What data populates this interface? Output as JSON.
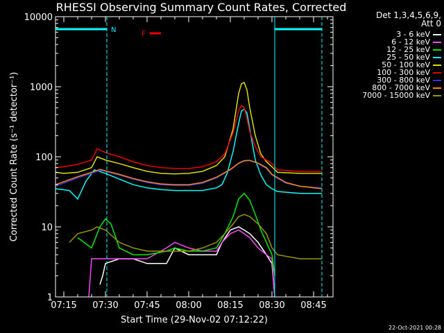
{
  "chart_data": {
    "type": "line",
    "title": "RHESSI Observing Summary Count Rates, Corrected",
    "xlabel": "Start Time (29-Nov-02 07:12:22)",
    "ylabel": "Corrected Count Rate (s⁻¹ detector⁻¹)",
    "yscale": "log",
    "ylim": [
      1,
      10000
    ],
    "xlim": [
      "07:12",
      "08:52"
    ],
    "x_ticks": [
      "07:15",
      "07:30",
      "07:45",
      "08:00",
      "08:15",
      "08:30",
      "08:45"
    ],
    "y_ticks": [
      "1",
      "10",
      "100",
      "1000",
      "10000"
    ],
    "legend_header": [
      "Det 1,3,4,5,6,9,",
      "Att 0"
    ],
    "legend_position": "right",
    "markers": [
      {
        "label": "N",
        "type": "night",
        "start": "07:12",
        "end": "07:30.5"
      },
      {
        "label": "",
        "type": "night",
        "start": "08:31",
        "end": "08:48"
      },
      {
        "label": "F",
        "type": "flare",
        "start": "07:46",
        "end": "07:50"
      }
    ],
    "series": [
      {
        "name": "3 - 6 keV",
        "color": "#ffffff",
        "x": [
          "07:28",
          "07:29",
          "07:30",
          "07:35",
          "07:40",
          "07:45",
          "07:52",
          "07:55",
          "08:00",
          "08:05",
          "08:10",
          "08:12",
          "08:15",
          "08:18",
          "08:20",
          "08:22",
          "08:25",
          "08:28",
          "08:30",
          "08:31"
        ],
        "y": [
          1.5,
          2,
          3,
          3.5,
          3.5,
          3,
          3,
          5,
          4,
          4,
          4,
          6,
          9,
          10,
          9,
          8,
          6,
          4,
          3,
          1
        ]
      },
      {
        "name": "6 - 12 keV",
        "color": "#ff44ff",
        "x": [
          "07:24",
          "07:25",
          "07:30",
          "07:35",
          "07:40",
          "07:45",
          "07:52",
          "07:55",
          "08:00",
          "08:05",
          "08:10",
          "08:12",
          "08:15",
          "08:18",
          "08:20",
          "08:22",
          "08:25",
          "08:28",
          "08:30",
          "08:31"
        ],
        "y": [
          1,
          3.5,
          3.5,
          3.5,
          3.5,
          3.5,
          5,
          6,
          5,
          4.5,
          4.5,
          6,
          8,
          9,
          8,
          7,
          5,
          4,
          3.5,
          1
        ]
      },
      {
        "name": "12 - 25 keV",
        "color": "#00ee00",
        "x": [
          "07:20",
          "07:25",
          "07:28",
          "07:30",
          "07:32",
          "07:35",
          "07:40",
          "07:45",
          "07:52",
          "07:55",
          "08:00",
          "08:05",
          "08:10",
          "08:13",
          "08:16",
          "08:18",
          "08:20",
          "08:22",
          "08:24",
          "08:26",
          "08:28",
          "08:30",
          "08:31"
        ],
        "y": [
          7,
          5,
          10,
          13,
          11,
          5,
          4,
          4,
          4.5,
          5,
          4.5,
          4.5,
          5,
          8,
          14,
          25,
          30,
          24,
          15,
          9,
          6,
          4,
          2
        ]
      },
      {
        "name": "25 - 50 keV",
        "color": "#00ffff",
        "x": [
          "07:12",
          "07:17",
          "07:20",
          "07:23",
          "07:26",
          "07:30",
          "07:35",
          "07:40",
          "07:45",
          "07:50",
          "07:55",
          "08:00",
          "08:05",
          "08:10",
          "08:12",
          "08:14",
          "08:16",
          "08:18",
          "08:19",
          "08:20",
          "08:21",
          "08:22",
          "08:24",
          "08:26",
          "08:28",
          "08:30",
          "08:32",
          "08:40",
          "08:48"
        ],
        "y": [
          35,
          33,
          25,
          45,
          65,
          58,
          48,
          40,
          36,
          34,
          33,
          33,
          33,
          36,
          40,
          60,
          120,
          300,
          450,
          480,
          420,
          250,
          90,
          55,
          40,
          35,
          32,
          30,
          30
        ]
      },
      {
        "name": "50 - 100 keV",
        "color": "#dddd00",
        "x": [
          "07:12",
          "07:15",
          "07:20",
          "07:25",
          "07:27",
          "07:30",
          "07:35",
          "07:40",
          "07:45",
          "07:50",
          "07:55",
          "08:00",
          "08:05",
          "08:10",
          "08:13",
          "08:16",
          "08:18",
          "08:19",
          "08:20",
          "08:21",
          "08:22",
          "08:24",
          "08:26",
          "08:28",
          "08:30",
          "08:32",
          "08:40",
          "08:48"
        ],
        "y": [
          60,
          58,
          60,
          70,
          100,
          90,
          80,
          70,
          62,
          58,
          57,
          58,
          62,
          75,
          100,
          250,
          800,
          1100,
          1150,
          900,
          500,
          200,
          110,
          85,
          72,
          60,
          58,
          58
        ]
      },
      {
        "name": "100 - 300 keV",
        "color": "#ee0000",
        "x": [
          "07:12",
          "07:15",
          "07:20",
          "07:25",
          "07:27",
          "07:30",
          "07:35",
          "07:40",
          "07:45",
          "07:50",
          "07:55",
          "08:00",
          "08:05",
          "08:10",
          "08:13",
          "08:16",
          "08:18",
          "08:19",
          "08:20",
          "08:21",
          "08:22",
          "08:24",
          "08:26",
          "08:28",
          "08:30",
          "08:32",
          "08:40",
          "08:48"
        ],
        "y": [
          70,
          72,
          78,
          90,
          130,
          115,
          100,
          85,
          75,
          70,
          68,
          68,
          72,
          85,
          110,
          220,
          450,
          540,
          500,
          350,
          230,
          140,
          100,
          90,
          80,
          65,
          62,
          62
        ]
      },
      {
        "name": "300 - 800 keV",
        "color": "#3030ff",
        "x": [
          "07:12",
          "07:15",
          "07:20",
          "07:25",
          "07:28",
          "07:30",
          "07:35",
          "07:40",
          "07:45",
          "07:50",
          "07:55",
          "08:00",
          "08:05",
          "08:10",
          "08:15",
          "08:18",
          "08:20",
          "08:22",
          "08:25",
          "08:28",
          "08:30",
          "08:35",
          "08:40",
          "08:48"
        ],
        "y": [
          38,
          42,
          50,
          58,
          64,
          62,
          55,
          48,
          43,
          40,
          39,
          39,
          42,
          50,
          65,
          80,
          87,
          88,
          80,
          68,
          55,
          42,
          38,
          36
        ]
      },
      {
        "name": "800 - 7000 keV",
        "color": "#ff8800",
        "x": [
          "07:12",
          "07:15",
          "07:20",
          "07:25",
          "07:28",
          "07:30",
          "07:35",
          "07:40",
          "07:45",
          "07:50",
          "07:55",
          "08:00",
          "08:05",
          "08:10",
          "08:15",
          "08:18",
          "08:20",
          "08:22",
          "08:25",
          "08:28",
          "08:30",
          "08:35",
          "08:40",
          "08:48"
        ],
        "y": [
          40,
          44,
          52,
          60,
          66,
          63,
          56,
          49,
          44,
          41,
          40,
          40,
          43,
          51,
          66,
          81,
          88,
          89,
          81,
          70,
          56,
          43,
          38,
          35
        ]
      },
      {
        "name": "7000 - 15000 keV",
        "color": "#999900",
        "x": [
          "07:17",
          "07:20",
          "07:25",
          "07:27",
          "07:30",
          "07:35",
          "07:40",
          "07:45",
          "07:50",
          "07:55",
          "08:00",
          "08:05",
          "08:10",
          "08:13",
          "08:16",
          "08:18",
          "08:20",
          "08:22",
          "08:25",
          "08:28",
          "08:30",
          "08:32",
          "08:40",
          "08:48"
        ],
        "y": [
          6,
          8,
          9,
          10,
          9,
          6,
          5,
          4.5,
          4.5,
          4.5,
          4.5,
          5,
          6,
          8,
          11,
          14,
          15,
          14,
          11,
          8,
          5,
          4,
          3.5,
          3.5
        ]
      }
    ]
  },
  "footer_stamp": "22-Oct-2021 00:28"
}
